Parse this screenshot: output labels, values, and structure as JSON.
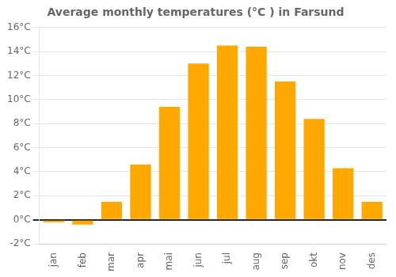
{
  "chart_data": {
    "type": "bar",
    "title": "Average monthly temperatures (°C ) in Farsund",
    "categories": [
      "jan",
      "feb",
      "mar",
      "apr",
      "mai",
      "jun",
      "jul",
      "aug",
      "sep",
      "okt",
      "nov",
      "des"
    ],
    "values": [
      -0.2,
      -0.4,
      1.5,
      4.6,
      9.4,
      13.0,
      14.5,
      14.4,
      11.5,
      8.4,
      4.3,
      1.5
    ],
    "color": "#FFA800",
    "ylim": [
      -2,
      16
    ],
    "yticks": [
      {
        "value": -2,
        "label": "-2°C"
      },
      {
        "value": 0,
        "label": "0°C"
      },
      {
        "value": 2,
        "label": "2°C"
      },
      {
        "value": 4,
        "label": "4°C"
      },
      {
        "value": 6,
        "label": "6°C"
      },
      {
        "value": 8,
        "label": "8°C"
      },
      {
        "value": 10,
        "label": "10°C"
      },
      {
        "value": 12,
        "label": "12°C"
      },
      {
        "value": 14,
        "label": "14°C"
      },
      {
        "value": 16,
        "label": "16°C"
      }
    ],
    "grid": true
  }
}
